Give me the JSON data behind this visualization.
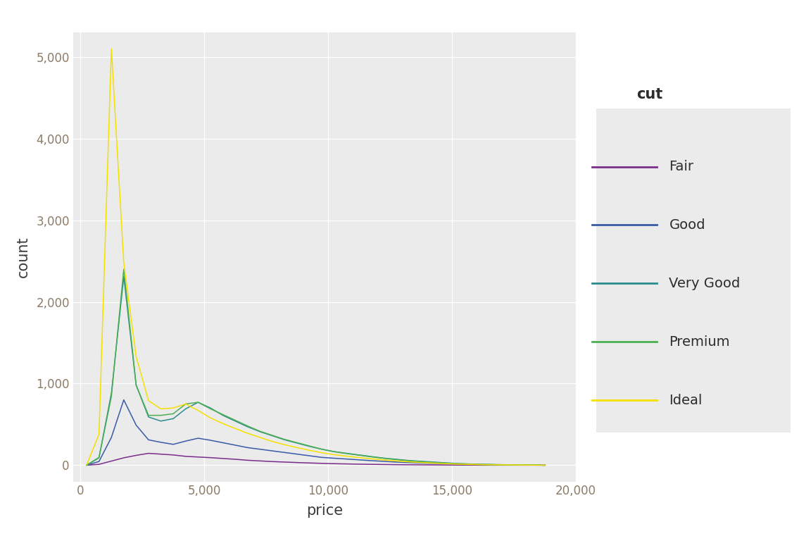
{
  "title": "",
  "xlabel": "price",
  "ylabel": "count",
  "legend_title": "cut",
  "cuts": [
    "Fair",
    "Good",
    "Very Good",
    "Premium",
    "Ideal"
  ],
  "colors": {
    "Fair": "#7B2D8B",
    "Good": "#3A5AA8",
    "Very Good": "#2B8C8C",
    "Premium": "#4CAF50",
    "Ideal": "#F5E000"
  },
  "xlim": [
    -300,
    20000
  ],
  "ylim": [
    -200,
    5300
  ],
  "xticks": [
    0,
    5000,
    10000,
    15000,
    20000
  ],
  "yticks": [
    0,
    1000,
    2000,
    3000,
    4000,
    5000
  ],
  "background_color": "#EBEBEB",
  "grid_color": "#FFFFFF",
  "bin_width": 500,
  "legend_bg": "#EBEBEB",
  "tick_color": "#8C7B65",
  "label_color": "#3C3C3C",
  "fair_counts": [
    0,
    10,
    50,
    90,
    120,
    145,
    135,
    125,
    108,
    100,
    92,
    82,
    72,
    60,
    52,
    44,
    38,
    32,
    27,
    22,
    18,
    15,
    12,
    10,
    8,
    6,
    5,
    4,
    3,
    2,
    1,
    1,
    0,
    0,
    0,
    0,
    0,
    0
  ],
  "good_counts": [
    0,
    45,
    340,
    800,
    490,
    310,
    280,
    255,
    295,
    330,
    305,
    275,
    245,
    215,
    195,
    175,
    155,
    135,
    115,
    95,
    85,
    75,
    65,
    55,
    47,
    38,
    32,
    26,
    22,
    17,
    14,
    10,
    7,
    5,
    3,
    2,
    1,
    0
  ],
  "very_good_counts": [
    0,
    90,
    880,
    2310,
    980,
    590,
    540,
    570,
    690,
    770,
    700,
    610,
    540,
    470,
    410,
    360,
    310,
    270,
    230,
    195,
    165,
    145,
    125,
    105,
    86,
    72,
    57,
    47,
    38,
    28,
    20,
    14,
    10,
    7,
    5,
    3,
    2,
    0
  ],
  "premium_counts": [
    0,
    95,
    840,
    2400,
    980,
    610,
    610,
    630,
    750,
    770,
    690,
    620,
    550,
    480,
    415,
    365,
    315,
    275,
    235,
    195,
    165,
    142,
    122,
    102,
    84,
    68,
    54,
    43,
    34,
    25,
    18,
    13,
    9,
    6,
    4,
    3,
    2,
    0
  ],
  "ideal_counts": [
    0,
    380,
    5100,
    2480,
    1330,
    790,
    690,
    700,
    750,
    670,
    580,
    510,
    450,
    390,
    340,
    290,
    250,
    215,
    182,
    152,
    128,
    110,
    93,
    78,
    64,
    52,
    41,
    32,
    25,
    18,
    13,
    9,
    6,
    4,
    3,
    2,
    1,
    0
  ]
}
